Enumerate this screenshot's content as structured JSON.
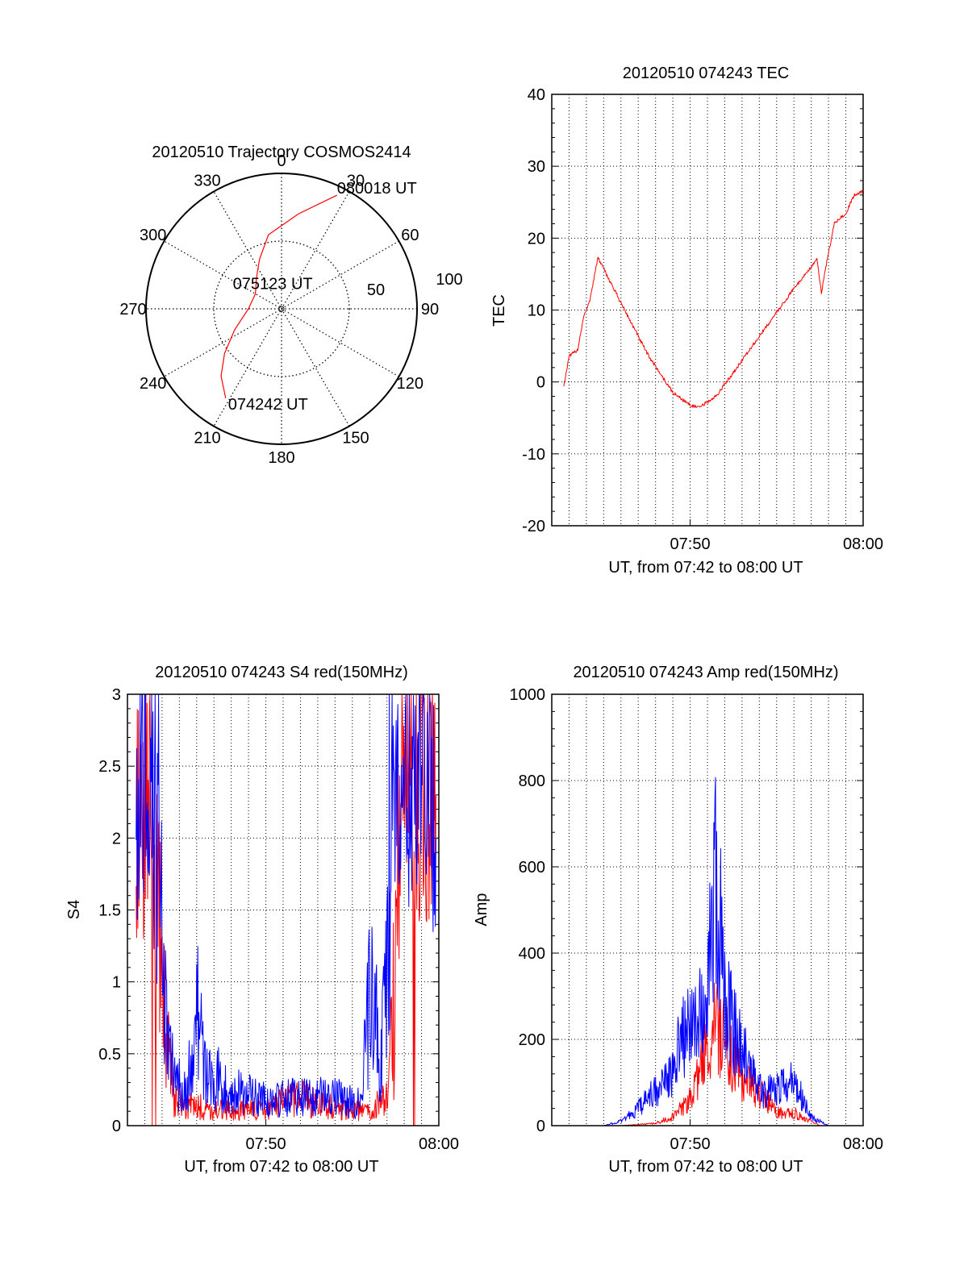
{
  "chart_data": [
    {
      "type": "polar",
      "title": "20120510 Trajectory COSMOS2414",
      "angle_labels": [
        "0",
        "30",
        "60",
        "90",
        "120",
        "150",
        "180",
        "210",
        "240",
        "270",
        "300",
        "330"
      ],
      "radius_labels": [
        "50",
        "100"
      ],
      "rlim": [
        0,
        100
      ],
      "grid": true,
      "color": "#ff0000",
      "track": [
        {
          "az": 212,
          "el": 20
        },
        {
          "az": 222,
          "el": 30
        },
        {
          "az": 232,
          "el": 42
        },
        {
          "az": 246,
          "el": 56
        },
        {
          "az": 270,
          "el": 68
        },
        {
          "az": 300,
          "el": 70
        },
        {
          "az": 320,
          "el": 64
        },
        {
          "az": 336,
          "el": 54
        },
        {
          "az": 350,
          "el": 40
        },
        {
          "az": 10,
          "el": 26
        },
        {
          "az": 26,
          "el": 6
        }
      ],
      "annotations": [
        {
          "text": "074242 UT",
          "az": 212,
          "el": 20
        },
        {
          "text": "075123 UT",
          "az": 300,
          "el": 70
        },
        {
          "text": "080018 UT",
          "az": 26,
          "el": 6
        }
      ]
    },
    {
      "type": "line",
      "title": "20120510 074243 TEC",
      "xlabel": "UT, from 07:42 to 08:00 UT",
      "ylabel": "TEC",
      "xlim": [
        "07:42",
        "08:00"
      ],
      "ylim": [
        -20,
        40
      ],
      "x_ticks": [
        "07:50",
        "08:00"
      ],
      "y_ticks": [
        "-20",
        "-10",
        "0",
        "10",
        "20",
        "30",
        "40"
      ],
      "grid": true,
      "series": [
        {
          "color": "#ff0000",
          "points": [
            [
              "07:42:42",
              -0.5
            ],
            [
              "07:43:00",
              3.5
            ],
            [
              "07:43:30",
              4.5
            ],
            [
              "07:43:50",
              9
            ],
            [
              "07:44:10",
              11
            ],
            [
              "07:44:40",
              17.3
            ],
            [
              "07:46:00",
              11
            ],
            [
              "07:47:30",
              4
            ],
            [
              "07:49:00",
              -1.5
            ],
            [
              "07:50:00",
              -3.2
            ],
            [
              "07:50:30",
              -3.6
            ],
            [
              "07:51:30",
              -2
            ],
            [
              "07:53:00",
              3
            ],
            [
              "07:54:30",
              8
            ],
            [
              "07:56:00",
              13
            ],
            [
              "07:57:20",
              17
            ],
            [
              "07:57:35",
              12.5
            ],
            [
              "07:58:00",
              18
            ],
            [
              "07:58:20",
              22
            ],
            [
              "07:59:00",
              23.5
            ],
            [
              "07:59:30",
              26
            ],
            [
              "08:00:00",
              26.5
            ]
          ]
        }
      ]
    },
    {
      "type": "line",
      "title": "20120510 074243 S4 red(150MHz)",
      "xlabel": "UT, from 07:42 to 08:00 UT",
      "ylabel": "S4",
      "xlim": [
        "07:42",
        "08:00"
      ],
      "ylim": [
        0,
        3
      ],
      "x_ticks": [
        "07:50",
        "08:00"
      ],
      "y_ticks": [
        "0",
        "0.5",
        "1",
        "1.5",
        "2",
        "2.5",
        "3"
      ],
      "grid": true,
      "series": [
        {
          "color": "#ff0000",
          "points": [
            [
              "07:42:30",
              2.0
            ],
            [
              "07:43:00",
              2.2
            ],
            [
              "07:43:30",
              1.9
            ],
            [
              "07:44:00",
              1.0
            ],
            [
              "07:44:20",
              0.6
            ],
            [
              "07:44:40",
              0.2
            ],
            [
              "07:45:30",
              0.15
            ],
            [
              "07:46:30",
              0.12
            ],
            [
              "07:48:00",
              0.1
            ],
            [
              "07:50:00",
              0.12
            ],
            [
              "07:52:00",
              0.2
            ],
            [
              "07:54:00",
              0.12
            ],
            [
              "07:56:00",
              0.1
            ],
            [
              "07:57:00",
              0.2
            ],
            [
              "07:57:20",
              0.8
            ],
            [
              "07:57:40",
              2.0
            ],
            [
              "07:58:00",
              2.6
            ],
            [
              "07:59:00",
              2.2
            ],
            [
              "07:59:50",
              2.3
            ]
          ]
        },
        {
          "color": "#0000ff",
          "points": [
            [
              "07:42:30",
              2.3
            ],
            [
              "07:43:00",
              2.5
            ],
            [
              "07:43:30",
              2.1
            ],
            [
              "07:44:00",
              1.3
            ],
            [
              "07:44:20",
              0.5
            ],
            [
              "07:44:40",
              0.35
            ],
            [
              "07:45:30",
              0.3
            ],
            [
              "07:46:00",
              0.8
            ],
            [
              "07:46:30",
              0.4
            ],
            [
              "07:48:00",
              0.25
            ],
            [
              "07:50:00",
              0.18
            ],
            [
              "07:52:00",
              0.2
            ],
            [
              "07:54:00",
              0.2
            ],
            [
              "07:55:30",
              0.15
            ],
            [
              "07:56:00",
              0.9
            ],
            [
              "07:56:40",
              0.5
            ],
            [
              "07:57:00",
              1.0
            ],
            [
              "07:57:30",
              2.5
            ],
            [
              "07:58:00",
              2.3
            ],
            [
              "07:59:00",
              2.6
            ],
            [
              "07:59:50",
              2.0
            ]
          ]
        }
      ]
    },
    {
      "type": "line",
      "title": "20120510 074243 Amp red(150MHz)",
      "xlabel": "UT, from 07:42 to 08:00 UT",
      "ylabel": "Amp",
      "xlim": [
        "07:42",
        "08:00"
      ],
      "ylim": [
        0,
        1000
      ],
      "x_ticks": [
        "07:50",
        "08:00"
      ],
      "y_ticks": [
        "0",
        "200",
        "400",
        "600",
        "800",
        "1000"
      ],
      "grid": true,
      "series": [
        {
          "color": "#ff0000",
          "points": [
            [
              "07:42:30",
              0
            ],
            [
              "07:46:00",
              0
            ],
            [
              "07:48:00",
              5
            ],
            [
              "07:49:00",
              20
            ],
            [
              "07:50:00",
              60
            ],
            [
              "07:50:30",
              120
            ],
            [
              "07:51:00",
              180
            ],
            [
              "07:51:30",
              240
            ],
            [
              "07:52:00",
              200
            ],
            [
              "07:52:30",
              140
            ],
            [
              "07:53:00",
              110
            ],
            [
              "07:54:00",
              80
            ],
            [
              "07:55:00",
              30
            ],
            [
              "07:56:00",
              30
            ],
            [
              "07:57:00",
              10
            ],
            [
              "07:57:30",
              0
            ],
            [
              "08:00:00",
              0
            ]
          ]
        },
        {
          "color": "#0000ff",
          "points": [
            [
              "07:42:30",
              0
            ],
            [
              "07:45:00",
              0
            ],
            [
              "07:46:00",
              10
            ],
            [
              "07:47:00",
              40
            ],
            [
              "07:48:00",
              80
            ],
            [
              "07:49:00",
              120
            ],
            [
              "07:49:30",
              200
            ],
            [
              "07:50:00",
              250
            ],
            [
              "07:50:30",
              280
            ],
            [
              "07:51:00",
              330
            ],
            [
              "07:51:30",
              600
            ],
            [
              "07:52:00",
              300
            ],
            [
              "07:52:30",
              220
            ],
            [
              "07:53:00",
              180
            ],
            [
              "07:53:30",
              120
            ],
            [
              "07:54:00",
              80
            ],
            [
              "07:55:00",
              80
            ],
            [
              "07:56:00",
              110
            ],
            [
              "07:56:30",
              60
            ],
            [
              "07:57:00",
              20
            ],
            [
              "07:58:00",
              0
            ],
            [
              "08:00:00",
              0
            ]
          ]
        }
      ]
    }
  ]
}
